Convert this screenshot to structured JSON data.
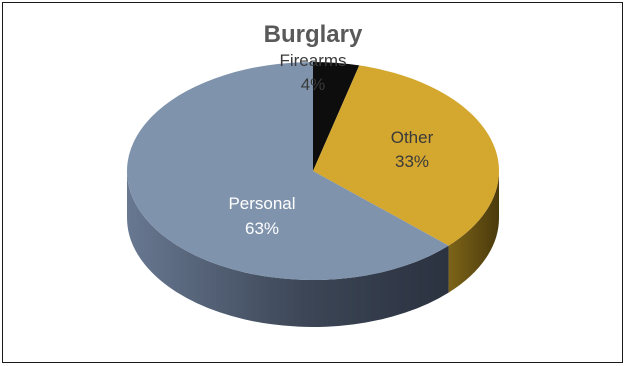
{
  "chart_data": {
    "type": "pie",
    "title": "Burglary",
    "slices": [
      {
        "label": "Firearms",
        "value": 4,
        "value_label": "4%",
        "color": "#0d0d0d",
        "side_color": "#000000",
        "label_color": "#3a3a3a"
      },
      {
        "label": "Other",
        "value": 33,
        "value_label": "33%",
        "color": "#d4a72f",
        "side_color": "#6b5413",
        "label_color": "#3a3a3a"
      },
      {
        "label": "Personal",
        "value": 63,
        "value_label": "63%",
        "color": "#7f93ad",
        "side_color": "#4a5566",
        "label_color": "#ffffff"
      }
    ],
    "legend": "none",
    "style": "3d"
  }
}
